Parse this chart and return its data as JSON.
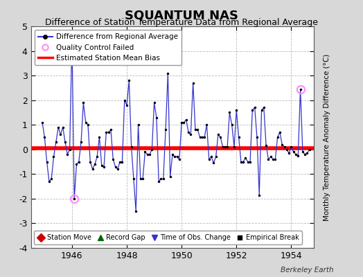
{
  "title": "SQUANTUM NAS",
  "subtitle": "Difference of Station Temperature Data from Regional Average",
  "ylabel_right": "Monthly Temperature Anomaly Difference (°C)",
  "xlim": [
    1944.5,
    1954.83
  ],
  "ylim": [
    -4,
    5
  ],
  "yticks": [
    -4,
    -3,
    -2,
    -1,
    0,
    1,
    2,
    3,
    4,
    5
  ],
  "xticks": [
    1946,
    1948,
    1950,
    1952,
    1954
  ],
  "bias_line": 0.05,
  "background_color": "#d8d8d8",
  "plot_bg_color": "#ffffff",
  "line_color": "#3333cc",
  "bias_color": "#ff0000",
  "marker_color": "#000000",
  "qc_fail_color": "#ff88ff",
  "title_fontsize": 13,
  "subtitle_fontsize": 9,
  "berkeley_earth_text": "Berkeley Earth",
  "data": [
    1944.917,
    1.1,
    1945.0,
    0.5,
    1945.083,
    -0.5,
    1945.167,
    -1.3,
    1945.25,
    -1.2,
    1945.333,
    -0.3,
    1945.417,
    0.3,
    1945.5,
    0.9,
    1945.583,
    0.6,
    1945.667,
    0.9,
    1945.75,
    0.3,
    1945.833,
    -0.2,
    1945.917,
    0.0,
    1946.0,
    4.5,
    1946.083,
    -2.0,
    1946.167,
    -0.6,
    1946.25,
    -0.5,
    1946.333,
    0.3,
    1946.417,
    1.9,
    1946.5,
    1.1,
    1946.583,
    1.0,
    1946.667,
    -0.5,
    1946.75,
    -0.8,
    1946.833,
    -0.6,
    1946.917,
    -0.3,
    1947.0,
    0.5,
    1947.083,
    -0.65,
    1947.167,
    -0.7,
    1947.25,
    0.7,
    1947.333,
    0.7,
    1947.417,
    0.8,
    1947.5,
    -0.4,
    1947.583,
    -0.7,
    1947.667,
    -0.8,
    1947.75,
    -0.5,
    1947.833,
    -0.5,
    1947.917,
    2.0,
    1948.0,
    1.8,
    1948.083,
    2.8,
    1948.167,
    0.1,
    1948.25,
    -1.2,
    1948.333,
    -2.5,
    1948.417,
    1.0,
    1948.5,
    -1.2,
    1948.583,
    -1.2,
    1948.667,
    -0.1,
    1948.75,
    -0.2,
    1948.833,
    -0.2,
    1948.917,
    0.0,
    1949.0,
    1.9,
    1949.083,
    1.3,
    1949.167,
    -1.3,
    1949.25,
    -1.2,
    1949.333,
    -1.2,
    1949.417,
    0.8,
    1949.5,
    3.1,
    1949.583,
    -1.1,
    1949.667,
    -0.2,
    1949.75,
    -0.3,
    1949.833,
    -0.3,
    1949.917,
    -0.4,
    1950.0,
    1.1,
    1950.083,
    1.1,
    1950.167,
    1.2,
    1950.25,
    0.7,
    1950.333,
    0.6,
    1950.417,
    2.7,
    1950.5,
    0.8,
    1950.583,
    0.8,
    1950.667,
    0.5,
    1950.75,
    0.5,
    1950.833,
    0.5,
    1950.917,
    1.0,
    1951.0,
    -0.4,
    1951.083,
    -0.3,
    1951.167,
    -0.55,
    1951.25,
    -0.3,
    1951.333,
    0.6,
    1951.417,
    0.5,
    1951.5,
    0.1,
    1951.583,
    0.1,
    1951.667,
    0.1,
    1951.75,
    1.5,
    1951.833,
    1.0,
    1951.917,
    0.1,
    1952.0,
    1.6,
    1952.083,
    0.5,
    1952.167,
    -0.5,
    1952.25,
    -0.5,
    1952.333,
    -0.35,
    1952.417,
    -0.5,
    1952.5,
    -0.5,
    1952.583,
    1.6,
    1952.667,
    1.7,
    1952.75,
    0.5,
    1952.833,
    -1.85,
    1952.917,
    1.6,
    1953.0,
    1.7,
    1953.083,
    0.15,
    1953.167,
    -0.4,
    1953.25,
    -0.3,
    1953.333,
    -0.4,
    1953.417,
    -0.4,
    1953.5,
    0.5,
    1953.583,
    0.7,
    1953.667,
    0.2,
    1953.75,
    0.1,
    1953.833,
    0.0,
    1953.917,
    -0.15,
    1954.0,
    0.1,
    1954.083,
    -0.1,
    1954.167,
    -0.2,
    1954.25,
    -0.25,
    1954.333,
    2.45,
    1954.417,
    -0.1,
    1954.5,
    -0.2,
    1954.583,
    -0.15,
    1954.667,
    0.0
  ],
  "qc_fail_points": [
    [
      1946.083,
      -2.0
    ],
    [
      1954.333,
      2.45
    ]
  ],
  "legend1_items": [
    {
      "label": "Difference from Regional Average"
    },
    {
      "label": "Quality Control Failed"
    },
    {
      "label": "Estimated Station Mean Bias"
    }
  ],
  "legend2_items": [
    {
      "label": "Station Move",
      "color": "#cc0000",
      "marker": "D",
      "markersize": 6
    },
    {
      "label": "Record Gap",
      "color": "#006600",
      "marker": "^",
      "markersize": 6
    },
    {
      "label": "Time of Obs. Change",
      "color": "#3333cc",
      "marker": "v",
      "markersize": 6
    },
    {
      "label": "Empirical Break",
      "color": "#000000",
      "marker": "s",
      "markersize": 5
    }
  ]
}
